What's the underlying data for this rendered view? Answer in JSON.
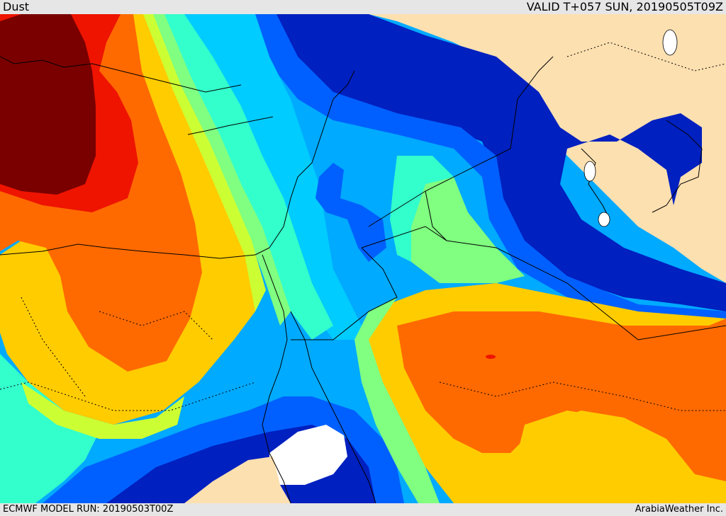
{
  "header": {
    "field": "Dust",
    "valid": "VALID T+057 SUN, 20190505T09Z"
  },
  "footer": {
    "model_run": "ECMWF MODEL RUN: 20190503T00Z",
    "credit": "ArabiaWeather Inc."
  },
  "palette": {
    "dark_maroon": "#7a0000",
    "red": "#ee1400",
    "orange": "#ff6a00",
    "light_orange": "#ffa500",
    "yellow": "#ffcc00",
    "lime": "#ccff33",
    "light_green": "#80ff80",
    "aquamarine": "#33ffcc",
    "cyan": "#00ccff",
    "sky_blue": "#00aaff",
    "blue": "#0060ff",
    "royal_blue": "#0033ee",
    "navy": "#0020c0",
    "land_clear": "#fde0b0",
    "no_data": "#ffffff",
    "border_line": "#000000"
  }
}
